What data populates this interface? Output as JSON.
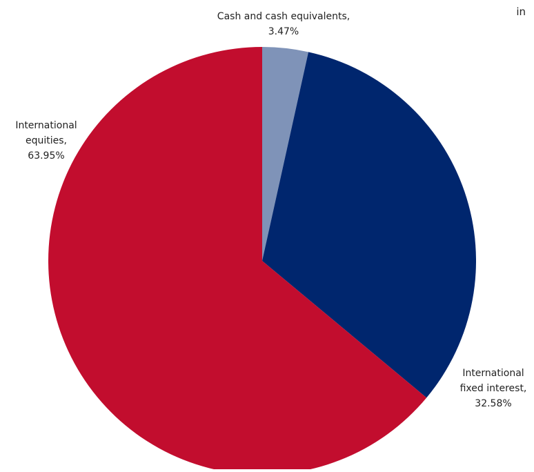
{
  "header": {
    "corner_text": "in"
  },
  "chart_data": {
    "type": "pie",
    "title": "",
    "start_angle_deg": 0,
    "direction": "clockwise",
    "slices": [
      {
        "label_lines": [
          "Cash and cash equivalents,",
          "3.47%"
        ],
        "value": 3.47,
        "color": "#7F93B8"
      },
      {
        "label_lines": [
          "International",
          "fixed interest,",
          "32.58%"
        ],
        "value": 32.58,
        "color": "#00266E"
      },
      {
        "label_lines": [
          "International",
          "equities,",
          "63.95%"
        ],
        "value": 63.95,
        "color": "#C20D2E"
      }
    ]
  }
}
